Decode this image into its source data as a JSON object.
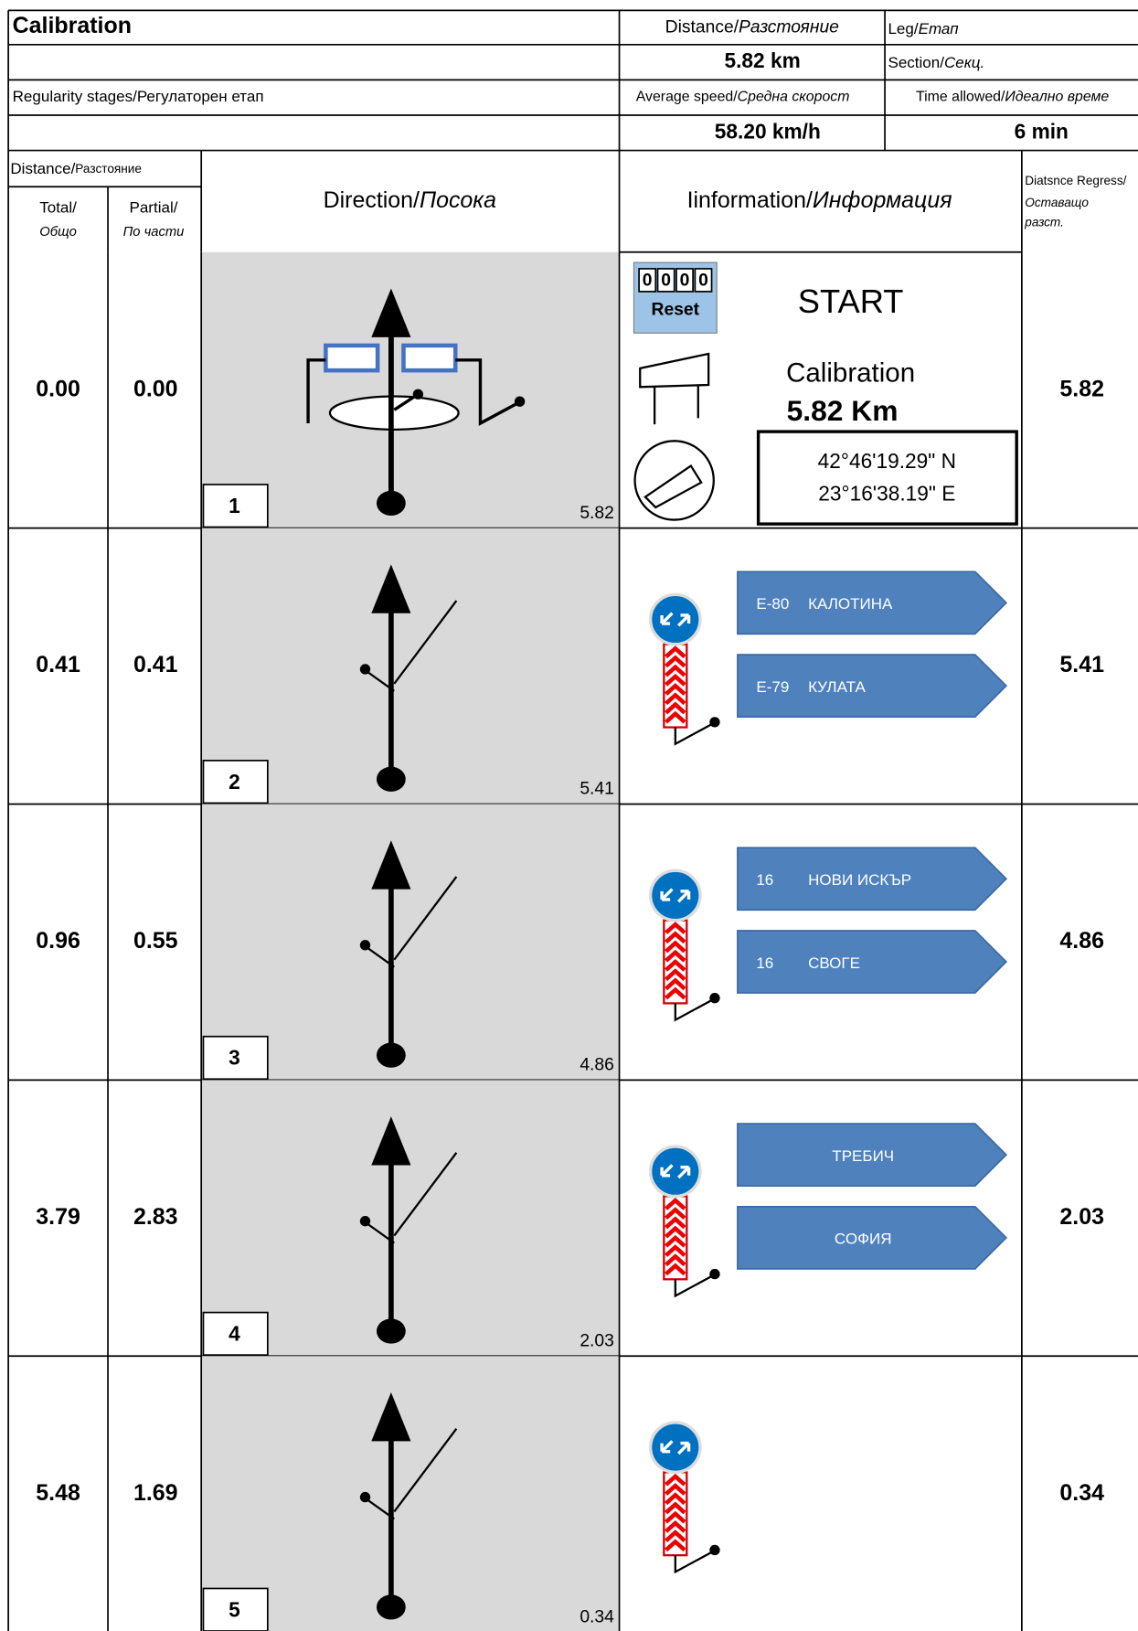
{
  "header": {
    "title": "Calibration",
    "distance_label": "Distance/",
    "distance_label_bg": "Разстояние",
    "distance": "5.82 km",
    "leg_label": "Leg/",
    "leg_label_bg": "Етап",
    "section_label": "Section/",
    "section_label_bg": "Секц.",
    "stage_type": "Regularity stages/Регулаторен етап",
    "speed_label": "Average speed/",
    "speed_label_bg": "Средна скорост",
    "speed": "58.20 km/h",
    "time_label": "Time allowed/",
    "time_label_bg": "Идеално време",
    "time": "6 min"
  },
  "columns": {
    "distance": "Distance/",
    "distance_bg": "Разстояние",
    "total": "Total/",
    "total_bg": "Общо",
    "partial": "Partial/",
    "partial_bg": "По части",
    "direction": "Direction/",
    "direction_bg": "Посока",
    "information": "Iinformation/",
    "information_bg": "Информация",
    "remaining": "Diatsnce Regress/",
    "remaining_bg_1": "Оставащо",
    "remaining_bg_2": "разст."
  },
  "rows": [
    {
      "total": "0.00",
      "partial": "0.00",
      "number": "1",
      "tulip_distance": "5.82",
      "remaining": "5.82",
      "info": {
        "counter": [
          "0",
          "0",
          "0",
          "0"
        ],
        "reset": "Reset",
        "start": "START",
        "label": "Calibration",
        "distance": "5.82 Km",
        "lat": "42°46'19.29\" N",
        "lon": "23°16'38.19\" E"
      }
    },
    {
      "total": "0.41",
      "partial": "0.41",
      "number": "2",
      "tulip_distance": "5.41",
      "remaining": "5.41",
      "signs": [
        {
          "code": "E-80",
          "name": "КАЛОТИНА"
        },
        {
          "code": "E-79",
          "name": "КУЛАТА"
        }
      ]
    },
    {
      "total": "0.96",
      "partial": "0.55",
      "number": "3",
      "tulip_distance": "4.86",
      "remaining": "4.86",
      "signs": [
        {
          "code": "16",
          "name": "НОВИ ИСКЪР"
        },
        {
          "code": "16",
          "name": "СВОГЕ"
        }
      ]
    },
    {
      "total": "3.79",
      "partial": "2.83",
      "number": "4",
      "tulip_distance": "2.03",
      "remaining": "2.03",
      "signs": [
        {
          "name": "ТРЕБИЧ"
        },
        {
          "name": "СОФИЯ"
        }
      ]
    },
    {
      "total": "5.48",
      "partial": "1.69",
      "number": "5",
      "tulip_distance": "0.34",
      "remaining": "0.34"
    }
  ]
}
